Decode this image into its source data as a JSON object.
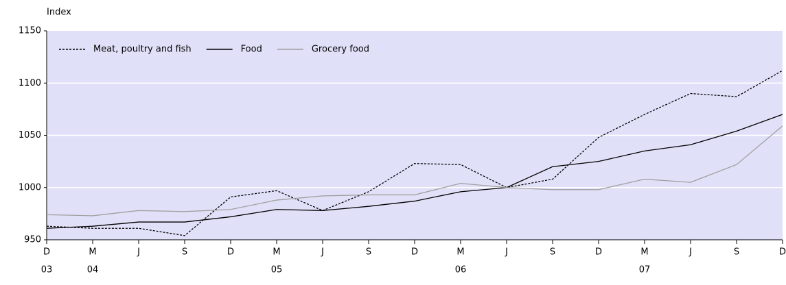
{
  "chart_data": {
    "type": "line",
    "y_label": "Index",
    "categories": [
      "D",
      "M",
      "J",
      "S",
      "D",
      "M",
      "J",
      "S",
      "D",
      "M",
      "J",
      "S",
      "D",
      "M",
      "J",
      "S",
      "D"
    ],
    "category_years": [
      "03",
      "04",
      null,
      null,
      null,
      "05",
      null,
      null,
      null,
      "06",
      null,
      null,
      null,
      "07",
      null,
      null,
      null
    ],
    "series": [
      {
        "name": "Meat, poultry and fish",
        "color": "#000000",
        "dash": "3,2",
        "values": [
          963,
          961,
          961,
          954,
          991,
          997,
          978,
          996,
          1023,
          1022,
          1000,
          1008,
          1048,
          1070,
          1090,
          1087,
          1112
        ]
      },
      {
        "name": "Food",
        "color": "#000000",
        "dash": null,
        "values": [
          961,
          963,
          967,
          967,
          972,
          979,
          978,
          982,
          987,
          996,
          1000,
          1020,
          1025,
          1035,
          1041,
          1054,
          1070
        ]
      },
      {
        "name": "Grocery food",
        "color": "#a0a0a0",
        "dash": null,
        "values": [
          974,
          973,
          978,
          977,
          979,
          988,
          992,
          993,
          993,
          1004,
          1000,
          998,
          998,
          1008,
          1005,
          1022,
          1059
        ]
      }
    ],
    "ylim": [
      950,
      1150
    ],
    "yticks": [
      950,
      1000,
      1050,
      1100,
      1150
    ],
    "grid": true,
    "plot_background": "#e0e0f8",
    "legend": "top-left"
  }
}
